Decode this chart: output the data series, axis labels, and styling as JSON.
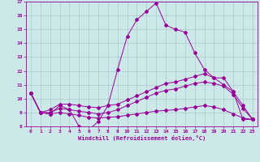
{
  "xlabel": "Windchill (Refroidissement éolien,°C)",
  "ylabel": "",
  "bg_color": "#cce8e8",
  "line_color": "#990099",
  "grid_color": "#aacccc",
  "xlim": [
    -0.5,
    23.5
  ],
  "ylim": [
    8,
    17
  ],
  "xticks": [
    0,
    1,
    2,
    3,
    4,
    5,
    6,
    7,
    8,
    9,
    10,
    11,
    12,
    13,
    14,
    15,
    16,
    17,
    18,
    19,
    20,
    21,
    22,
    23
  ],
  "yticks": [
    8,
    9,
    10,
    11,
    12,
    13,
    14,
    15,
    16,
    17
  ],
  "line1_x": [
    0,
    1,
    2,
    3,
    4,
    5,
    6,
    7,
    8,
    9,
    10,
    11,
    12,
    13,
    14,
    15,
    16,
    17,
    18,
    19,
    20,
    21,
    22,
    23
  ],
  "line1_y": [
    10.4,
    9.0,
    8.9,
    9.5,
    9.2,
    8.0,
    7.75,
    8.35,
    9.5,
    12.1,
    14.5,
    15.7,
    16.3,
    16.9,
    15.3,
    15.0,
    14.8,
    13.3,
    12.1,
    11.5,
    11.0,
    10.5,
    8.5,
    8.5
  ],
  "line2_x": [
    0,
    1,
    2,
    3,
    4,
    5,
    6,
    7,
    8,
    9,
    10,
    11,
    12,
    13,
    14,
    15,
    16,
    17,
    18,
    19,
    20,
    21,
    22,
    23
  ],
  "line2_y": [
    10.4,
    9.0,
    9.2,
    9.6,
    9.6,
    9.5,
    9.4,
    9.35,
    9.5,
    9.6,
    9.9,
    10.2,
    10.5,
    10.8,
    11.1,
    11.2,
    11.4,
    11.6,
    11.8,
    11.5,
    11.5,
    10.5,
    9.5,
    8.5
  ],
  "line3_x": [
    0,
    1,
    2,
    3,
    4,
    5,
    6,
    7,
    8,
    9,
    10,
    11,
    12,
    13,
    14,
    15,
    16,
    17,
    18,
    19,
    20,
    21,
    22,
    23
  ],
  "line3_y": [
    10.4,
    9.0,
    9.0,
    9.3,
    9.2,
    9.1,
    9.0,
    8.9,
    9.0,
    9.2,
    9.5,
    9.8,
    10.1,
    10.4,
    10.6,
    10.7,
    10.9,
    11.1,
    11.2,
    11.1,
    10.9,
    10.3,
    9.3,
    8.5
  ],
  "line4_x": [
    0,
    1,
    2,
    3,
    4,
    5,
    6,
    7,
    8,
    9,
    10,
    11,
    12,
    13,
    14,
    15,
    16,
    17,
    18,
    19,
    20,
    21,
    22,
    23
  ],
  "line4_y": [
    10.4,
    9.0,
    8.9,
    9.0,
    8.9,
    8.8,
    8.65,
    8.6,
    8.65,
    8.7,
    8.8,
    8.9,
    9.0,
    9.1,
    9.15,
    9.2,
    9.3,
    9.4,
    9.5,
    9.4,
    9.2,
    8.9,
    8.6,
    8.5
  ]
}
